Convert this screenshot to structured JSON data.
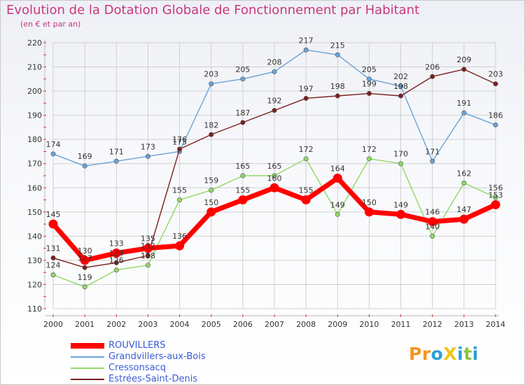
{
  "title": "Evolution de la Dotation Globale de Fonctionnement par Habitant",
  "subtitle": "(en € et par an)",
  "logo": {
    "text": "ProXiti",
    "letters": [
      {
        "ch": "P",
        "color": "#f7941d"
      },
      {
        "ch": "r",
        "color": "#f7941d"
      },
      {
        "ch": "o",
        "color": "#2a9fd6"
      },
      {
        "ch": "X",
        "color": "#f0c419"
      },
      {
        "ch": "i",
        "color": "#2a9fd6"
      },
      {
        "ch": "t",
        "color": "#8cc63f"
      },
      {
        "ch": "i",
        "color": "#2a9fd6"
      }
    ]
  },
  "chart_data": {
    "type": "line",
    "x": [
      "2000",
      "2001",
      "2002",
      "2003",
      "2004",
      "2005",
      "2006",
      "2007",
      "2008",
      "2009",
      "2010",
      "2011",
      "2012",
      "2013",
      "2014"
    ],
    "ylim": [
      110,
      220
    ],
    "yticks": [
      110,
      120,
      130,
      140,
      150,
      160,
      170,
      180,
      190,
      200,
      210,
      220
    ],
    "grid": true,
    "legend_position": "bottom-left",
    "series": [
      {
        "name": "ROUVILLERS",
        "color": "#ff0000",
        "values": [
          145,
          130,
          133,
          135,
          136,
          150,
          155,
          160,
          155,
          164,
          150,
          149,
          146,
          147,
          153
        ]
      },
      {
        "name": "Grandvillers-aux-Bois",
        "color": "#6aa3d8",
        "values": [
          174,
          169,
          171,
          173,
          175,
          203,
          205,
          208,
          217,
          215,
          205,
          202,
          171,
          191,
          186
        ]
      },
      {
        "name": "Cressonsacq",
        "color": "#8fd867",
        "values": [
          124,
          119,
          126,
          128,
          155,
          159,
          165,
          165,
          172,
          149,
          172,
          170,
          140,
          162,
          156
        ]
      },
      {
        "name": "Estrées-Saint-Denis",
        "color": "#7b1f1f",
        "values": [
          131,
          127,
          129,
          132,
          176,
          182,
          187,
          192,
          197,
          198,
          199,
          198,
          206,
          209,
          203
        ]
      }
    ]
  }
}
